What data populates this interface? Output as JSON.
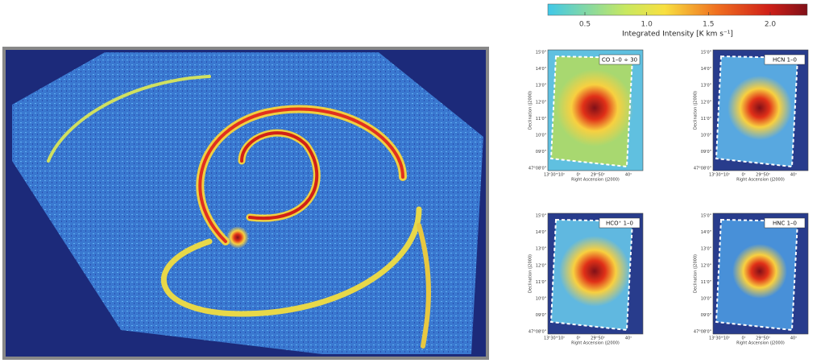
{
  "colorbar": {
    "label": "Integrated Intensity [K km s⁻¹]",
    "lim": [
      0.2,
      2.3
    ],
    "ticks": [
      0.5,
      {
        "value": 1,
        "label": "1.0"
      },
      1.5,
      {
        "value": 2,
        "label": "2.0"
      }
    ]
  },
  "panels": [
    {
      "label": "CO 1–0 ÷ 30"
    },
    {
      "label": "HCN 1–0"
    },
    {
      "label": "HCO⁺ 1–0"
    },
    {
      "label": "HNC 1–0"
    }
  ],
  "axes": {
    "ylabel": "Declination (J2000)",
    "xlabel": "Right Ascension (J2000)",
    "yticks": [
      "15'0\"",
      "14'0\"",
      "13'0\"",
      "12'0\"",
      "11'0\"",
      "10'0\"",
      "09'0\"",
      "47°08'0\""
    ],
    "xticks": [
      "13ʰ30ᵐ10ˢ",
      "0ˢ",
      "29ᵐ50ˢ",
      "40ˢ"
    ]
  }
}
